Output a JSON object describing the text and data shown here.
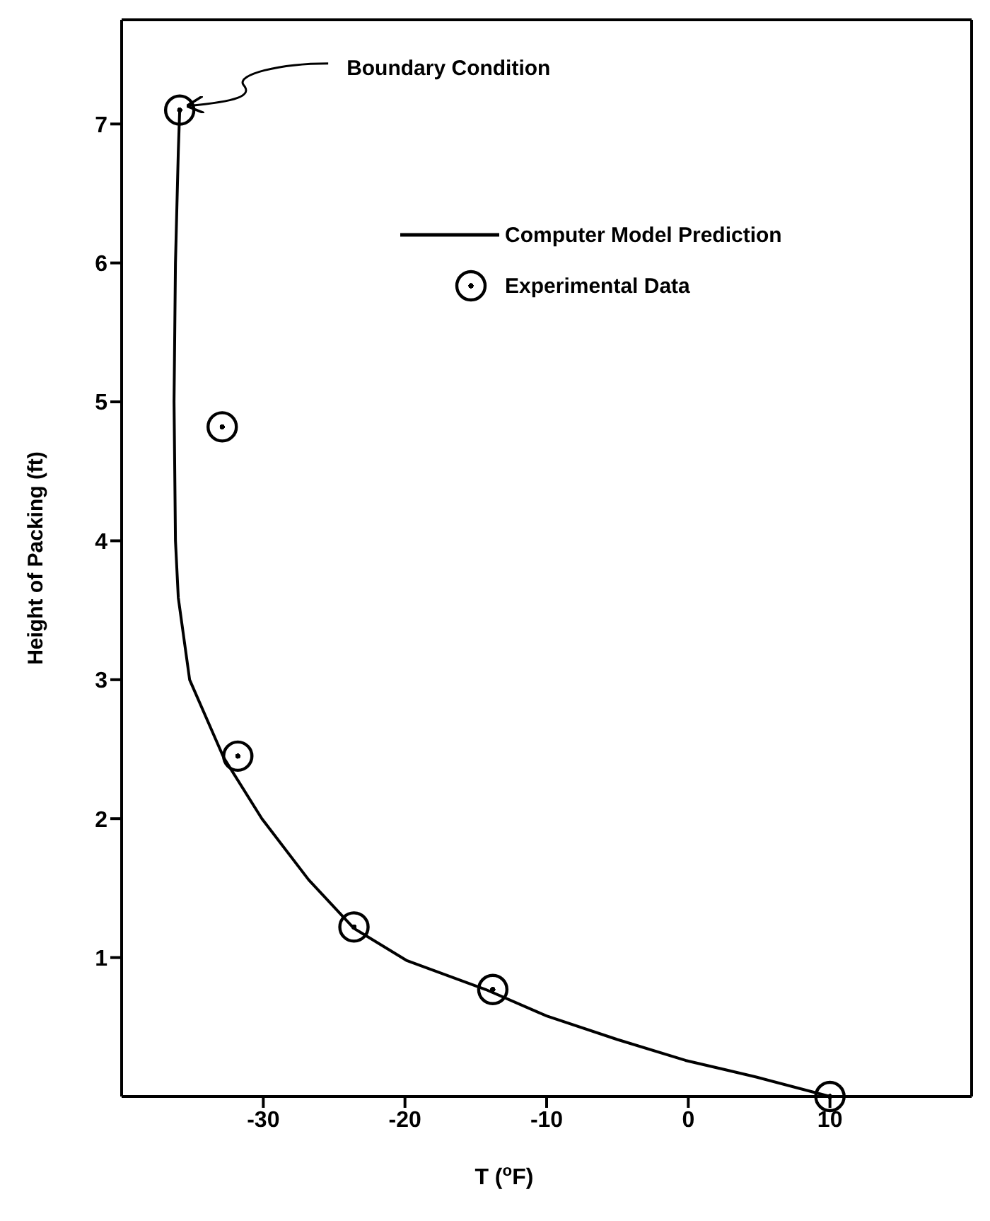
{
  "chart_data": {
    "type": "scatter",
    "xlabel": "T ($^{o}$F)",
    "ylabel": "Height of Packing (ft)",
    "xlim": [
      -40,
      20
    ],
    "xticks": [
      -30,
      -20,
      -10,
      0,
      10
    ],
    "ylim": [
      0,
      7.75
    ],
    "yticks": [
      1,
      2,
      3,
      4,
      5,
      6,
      7
    ],
    "grid": false,
    "legend": "top right",
    "marker": "circle",
    "annotations": [
      {
        "text": "Boundary Condition",
        "x": -35.9,
        "y": 7.1
      }
    ],
    "series": [
      {
        "name": "Computer Model Prediction",
        "type": "line",
        "color": "#000000",
        "line_style": "solid",
        "marker": "none",
        "x": [
          -35.9,
          -36.0,
          -36.2,
          -36.3,
          -36.2,
          -36.0,
          -35.2,
          -32.8,
          -30.1,
          -26.8,
          -23.6,
          -19.9,
          -14.3,
          -10,
          -5.0,
          -0.2,
          4.8,
          10
        ],
        "values": [
          7.1,
          6.8,
          6.0,
          5.0,
          4.0,
          3.59,
          3.0,
          2.44,
          2.0,
          1.56,
          1.21,
          0.98,
          0.77,
          0.58,
          0.41,
          0.26,
          0.14,
          0
        ]
      },
      {
        "name": "Experimental Data",
        "type": "scatter",
        "color": "#000000",
        "x": [
          -35.9,
          -32.9,
          -31.8,
          -23.6,
          -13.8,
          10
        ],
        "values": [
          7.1,
          4.82,
          2.45,
          1.22,
          0.77,
          0
        ]
      }
    ]
  }
}
